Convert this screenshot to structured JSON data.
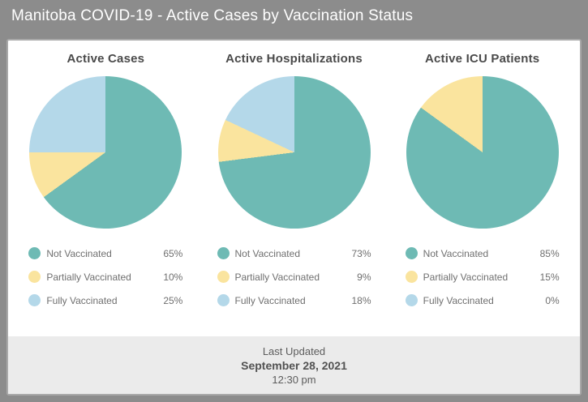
{
  "header": {
    "title": "Manitoba COVID-19 - Active Cases by Vaccination Status"
  },
  "colors": {
    "not_vaccinated": "#6ebab4",
    "partially_vaccinated": "#fae49e",
    "fully_vaccinated": "#b4d8e9",
    "page_background": "#8c8c8c",
    "card_background": "#ffffff",
    "footer_background": "#ebebeb"
  },
  "chart_data": [
    {
      "type": "pie",
      "title": "Active Cases",
      "legend_position": "bottom",
      "start_angle_deg": 0,
      "direction": "clockwise",
      "slices": [
        {
          "label": "Not Vaccinated",
          "value": 65,
          "display": "65%",
          "color": "#6ebab4"
        },
        {
          "label": "Partially Vaccinated",
          "value": 10,
          "display": "10%",
          "color": "#fae49e"
        },
        {
          "label": "Fully Vaccinated",
          "value": 25,
          "display": "25%",
          "color": "#b4d8e9"
        }
      ]
    },
    {
      "type": "pie",
      "title": "Active Hospitalizations",
      "legend_position": "bottom",
      "start_angle_deg": 0,
      "direction": "clockwise",
      "slices": [
        {
          "label": "Not Vaccinated",
          "value": 73,
          "display": "73%",
          "color": "#6ebab4"
        },
        {
          "label": "Partially Vaccinated",
          "value": 9,
          "display": "9%",
          "color": "#fae49e"
        },
        {
          "label": "Fully Vaccinated",
          "value": 18,
          "display": "18%",
          "color": "#b4d8e9"
        }
      ]
    },
    {
      "type": "pie",
      "title": "Active ICU Patients",
      "legend_position": "bottom",
      "start_angle_deg": 0,
      "direction": "clockwise",
      "slices": [
        {
          "label": "Not Vaccinated",
          "value": 85,
          "display": "85%",
          "color": "#6ebab4"
        },
        {
          "label": "Partially Vaccinated",
          "value": 15,
          "display": "15%",
          "color": "#fae49e"
        },
        {
          "label": "Fully Vaccinated",
          "value": 0,
          "display": "0%",
          "color": "#b4d8e9"
        }
      ]
    }
  ],
  "footer": {
    "line1": "Last Updated",
    "line2": "September 28, 2021",
    "line3": "12:30 pm"
  }
}
